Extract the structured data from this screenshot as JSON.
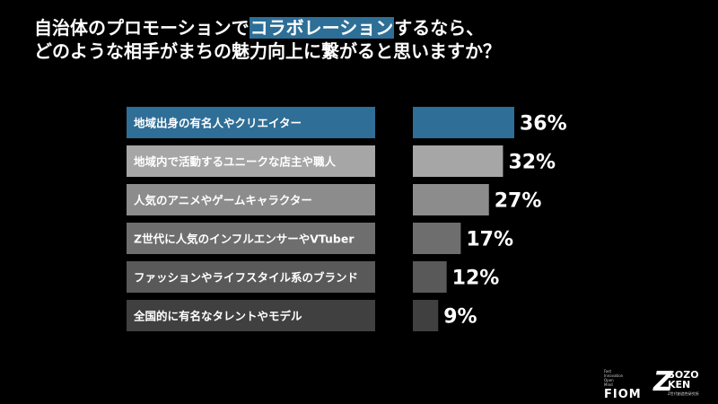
{
  "title": {
    "line1_pre": "自治体のプロモーションで",
    "line1_highlight": "コラボレーション",
    "line1_post": "するなら、",
    "line2": "どのような相手がまちの魅力向上に繋がると思いますか？"
  },
  "chart_data": {
    "type": "bar",
    "orientation": "horizontal",
    "title": "",
    "xlabel": "",
    "ylabel": "",
    "xlim": [
      0,
      100
    ],
    "categories": [
      "地域出身の有名人やクリエイター",
      "地域内で活動するユニークな店主や職人",
      "人気のアニメやゲームキャラクター",
      "Z世代に人気のインフルエンサーやVTuber",
      "ファッションやライフスタイル系のブランド",
      "全国的に有名なタレントやモデル"
    ],
    "values": [
      36,
      32,
      27,
      17,
      12,
      9
    ],
    "value_labels": [
      "36%",
      "32%",
      "27%",
      "17%",
      "12%",
      "9%"
    ],
    "colors": [
      "#2f6e96",
      "#a6a6a6",
      "#8c8c8c",
      "#6e6e6e",
      "#595959",
      "#404040"
    ],
    "label_box_colors": [
      "#2f6e96",
      "#a6a6a6",
      "#8c8c8c",
      "#6e6e6e",
      "#595959",
      "#404040"
    ]
  },
  "logos": {
    "fiom_small": [
      "Fast",
      "Innovation",
      "Open",
      "Mind"
    ],
    "fiom_big": "FIOM",
    "sozo_z": "Z",
    "sozo_line1": "SOZO",
    "sozo_line2": "KEN",
    "sozo_tagline": "Z世代創造性研究所"
  }
}
